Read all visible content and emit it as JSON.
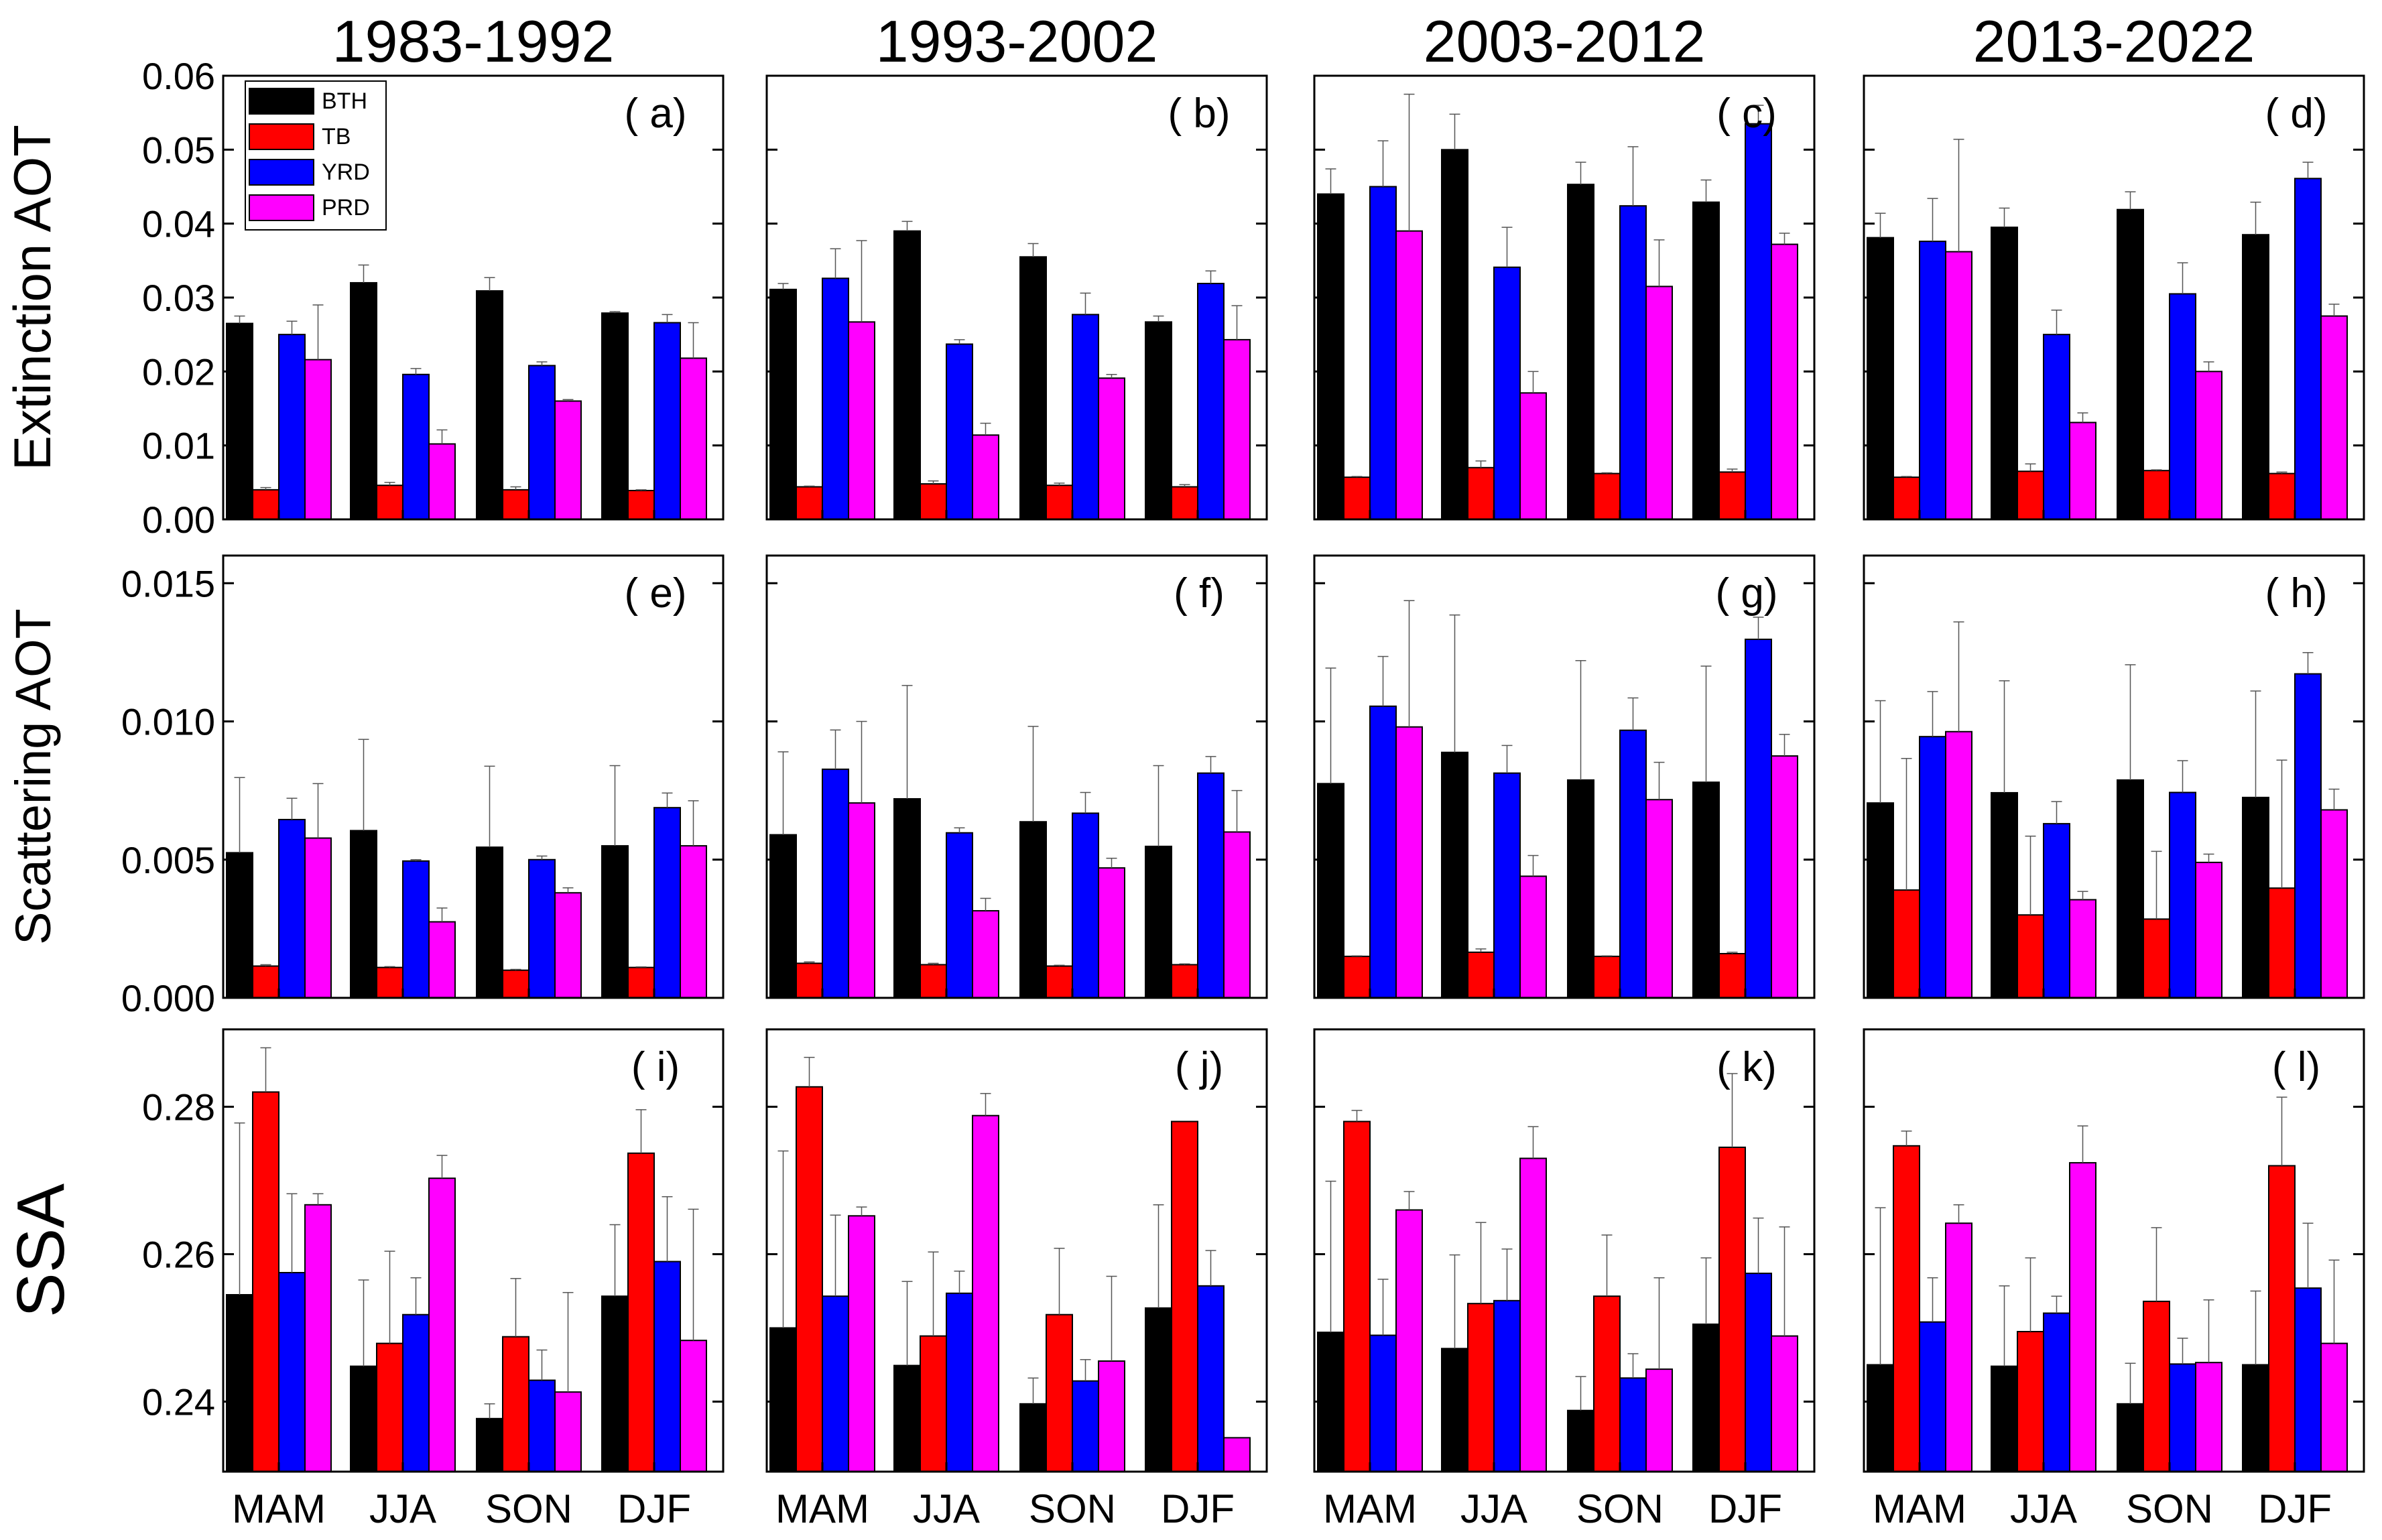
{
  "colors": {
    "BTH": "#000000",
    "TB": "#ff0000",
    "YRD": "#0000ff",
    "PRD": "#ff00ff"
  },
  "chart_data": {
    "type": "bar",
    "period_titles": [
      "1983-1992",
      "1993-2002",
      "2003-2012",
      "2013-2022"
    ],
    "categories": [
      "MAM",
      "JJA",
      "SON",
      "DJF"
    ],
    "series_names": [
      "BTH",
      "TB",
      "YRD",
      "PRD"
    ],
    "legend_position": "top-left of panel (a)",
    "rows": [
      {
        "ylabel": "Extinction AOT",
        "ylim": [
          0,
          0.06
        ],
        "yticks": [
          0.0,
          0.01,
          0.02,
          0.03,
          0.04,
          0.05,
          0.06
        ],
        "ytick_labels": [
          "0.00",
          "0.01",
          "0.02",
          "0.03",
          "0.04",
          "0.05",
          "0.06"
        ],
        "panels": [
          {
            "label": "( a)",
            "values": [
              [
                0.0265,
                0.004,
                0.025,
                0.0216
              ],
              [
                0.032,
                0.0046,
                0.0196,
                0.0102
              ],
              [
                0.0309,
                0.004,
                0.0208,
                0.016
              ],
              [
                0.0279,
                0.0039,
                0.0266,
                0.0218
              ]
            ],
            "errors": [
              [
                0.001,
                0.0003,
                0.0018,
                0.0074
              ],
              [
                0.0024,
                0.0004,
                0.0008,
                0.0019
              ],
              [
                0.0018,
                0.0004,
                0.0005,
                0.0002
              ],
              [
                0.0002,
                0.0001,
                0.0011,
                0.0048
              ]
            ]
          },
          {
            "label": "( b)",
            "values": [
              [
                0.0311,
                0.0044,
                0.0326,
                0.0267
              ],
              [
                0.039,
                0.0048,
                0.0237,
                0.0114
              ],
              [
                0.0355,
                0.0046,
                0.0277,
                0.0191
              ],
              [
                0.0267,
                0.0044,
                0.0319,
                0.0243
              ]
            ],
            "errors": [
              [
                0.0008,
                0.0001,
                0.004,
                0.011
              ],
              [
                0.0013,
                0.0004,
                0.0006,
                0.0016
              ],
              [
                0.0018,
                0.0003,
                0.0029,
                0.0005
              ],
              [
                0.0008,
                0.0003,
                0.0017,
                0.0046
              ]
            ]
          },
          {
            "label": "( c)",
            "values": [
              [
                0.044,
                0.0057,
                0.045,
                0.039
              ],
              [
                0.05,
                0.007,
                0.0341,
                0.0171
              ],
              [
                0.0453,
                0.0062,
                0.0424,
                0.0315
              ],
              [
                0.0429,
                0.0064,
                0.0535,
                0.0372
              ]
            ],
            "errors": [
              [
                0.0034,
                0.0001,
                0.0062,
                0.0185
              ],
              [
                0.0048,
                0.0009,
                0.0054,
                0.0029
              ],
              [
                0.003,
                0.0001,
                0.008,
                0.0063
              ],
              [
                0.003,
                0.0004,
                0.0025,
                0.0015
              ]
            ]
          },
          {
            "label": "( d)",
            "values": [
              [
                0.0381,
                0.0057,
                0.0376,
                0.0362
              ],
              [
                0.0395,
                0.0065,
                0.025,
                0.0131
              ],
              [
                0.0419,
                0.0066,
                0.0305,
                0.02
              ],
              [
                0.0385,
                0.0062,
                0.0461,
                0.0275
              ]
            ],
            "errors": [
              [
                0.0033,
                0.0001,
                0.0058,
                0.0152
              ],
              [
                0.0026,
                0.001,
                0.0033,
                0.0013
              ],
              [
                0.0024,
                0.0001,
                0.0042,
                0.0013
              ],
              [
                0.0044,
                0.0002,
                0.0022,
                0.0016
              ]
            ]
          }
        ]
      },
      {
        "ylabel": "Scattering AOT",
        "ylim": [
          0,
          0.016
        ],
        "yticks": [
          0.0,
          0.005,
          0.01,
          0.015
        ],
        "ytick_labels": [
          "0.000",
          "0.005",
          "0.010",
          "0.015"
        ],
        "panels": [
          {
            "label": "( e)",
            "values": [
              [
                0.00525,
                0.00115,
                0.00645,
                0.00578
              ],
              [
                0.00605,
                0.0011,
                0.00495,
                0.00275
              ],
              [
                0.00545,
                0.001,
                0.005,
                0.0038
              ],
              [
                0.0055,
                0.0011,
                0.00688,
                0.0055
              ]
            ],
            "errors": [
              [
                0.00272,
                5e-05,
                0.00077,
                0.00197
              ],
              [
                0.0033,
                3e-05,
                5e-05,
                0.0005
              ],
              [
                0.00293,
                3e-05,
                0.00013,
                0.00018
              ],
              [
                0.0029,
                2e-05,
                0.00053,
                0.00163
              ]
            ]
          },
          {
            "label": "( f)",
            "values": [
              [
                0.0059,
                0.00125,
                0.00827,
                0.00705
              ],
              [
                0.0072,
                0.0012,
                0.00597,
                0.00315
              ],
              [
                0.00637,
                0.00115,
                0.00668,
                0.0047
              ],
              [
                0.00548,
                0.0012,
                0.00813,
                0.006
              ]
            ],
            "errors": [
              [
                0.003,
                5e-05,
                0.00142,
                0.00295
              ],
              [
                0.0041,
                5e-05,
                0.00018,
                0.00045
              ],
              [
                0.00345,
                3e-05,
                0.00075,
                0.00035
              ],
              [
                0.00292,
                3e-05,
                0.0006,
                0.0015
              ]
            ]
          },
          {
            "label": "( g)",
            "values": [
              [
                0.00775,
                0.0015,
                0.01055,
                0.0098
              ],
              [
                0.00888,
                0.00165,
                0.00813,
                0.0044
              ],
              [
                0.00788,
                0.0015,
                0.00968,
                0.00717
              ],
              [
                0.0078,
                0.0016,
                0.01297,
                0.00875
              ]
            ],
            "errors": [
              [
                0.00418,
                2e-05,
                0.0018,
                0.00457
              ],
              [
                0.00497,
                0.00012,
                0.001,
                0.00075
              ],
              [
                0.00432,
                2e-05,
                0.00117,
                0.00135
              ],
              [
                0.0042,
                5e-05,
                0.0008,
                0.00078
              ]
            ]
          },
          {
            "label": "( h)",
            "values": [
              [
                0.00705,
                0.0039,
                0.00945,
                0.00963
              ],
              [
                0.00742,
                0.003,
                0.0063,
                0.00355
              ],
              [
                0.00788,
                0.00285,
                0.00743,
                0.0049
              ],
              [
                0.00725,
                0.00397,
                0.01172,
                0.0068
              ]
            ],
            "errors": [
              [
                0.0037,
                0.00476,
                0.00163,
                0.00397
              ],
              [
                0.00405,
                0.00285,
                0.0008,
                0.0003
              ],
              [
                0.00417,
                0.00245,
                0.00115,
                0.0003
              ],
              [
                0.00385,
                0.00463,
                0.00077,
                0.00075
              ]
            ]
          }
        ]
      },
      {
        "ylabel": "SSA",
        "ylim": [
          0.2305,
          0.2905
        ],
        "yticks": [
          0.24,
          0.26,
          0.28
        ],
        "ytick_labels": [
          "0.24",
          "0.26",
          "0.28"
        ],
        "panels": [
          {
            "label": "( i)",
            "values": [
              [
                0.2545,
                0.282,
                0.2575,
                0.2667
              ],
              [
                0.2448,
                0.2479,
                0.2518,
                0.2703
              ],
              [
                0.2377,
                0.2488,
                0.2429,
                0.2413
              ],
              [
                0.2543,
                0.2737,
                0.259,
                0.2483
              ]
            ],
            "errors": [
              [
                0.0233,
                0.006,
                0.0107,
                0.0015
              ],
              [
                0.0117,
                0.0125,
                0.005,
                0.0031
              ],
              [
                0.002,
                0.0079,
                0.0041,
                0.0135
              ],
              [
                0.0097,
                0.0059,
                0.0088,
                0.0178
              ]
            ]
          },
          {
            "label": "( j)",
            "values": [
              [
                0.25,
                0.2827,
                0.2543,
                0.2652
              ],
              [
                0.2449,
                0.2489,
                0.2547,
                0.2788
              ],
              [
                0.2397,
                0.2518,
                0.2428,
                0.2455
              ],
              [
                0.2527,
                0.278,
                0.2557,
                0.2351
              ]
            ],
            "errors": [
              [
                0.024,
                0.004,
                0.011,
                0.0012
              ],
              [
                0.0114,
                0.0114,
                0.003,
                0.003
              ],
              [
                0.0035,
                0.009,
                0.0029,
                0.0115
              ],
              [
                0.014,
                0.0,
                0.0048,
                0.0
              ]
            ]
          },
          {
            "label": "( k)",
            "values": [
              [
                0.2494,
                0.278,
                0.249,
                0.266
              ],
              [
                0.2472,
                0.2533,
                0.2537,
                0.273
              ],
              [
                0.2388,
                0.2543,
                0.2432,
                0.2444
              ],
              [
                0.2505,
                0.2745,
                0.2574,
                0.2489
              ]
            ],
            "errors": [
              [
                0.0205,
                0.0015,
                0.0076,
                0.0025
              ],
              [
                0.0127,
                0.011,
                0.007,
                0.0043
              ],
              [
                0.0046,
                0.0083,
                0.0033,
                0.0124
              ],
              [
                0.009,
                0.01,
                0.0075,
                0.0148
              ]
            ]
          },
          {
            "label": "( l)",
            "values": [
              [
                0.245,
                0.2747,
                0.2508,
                0.2642
              ],
              [
                0.2448,
                0.2495,
                0.252,
                0.2724
              ],
              [
                0.2397,
                0.2536,
                0.2451,
                0.2453
              ],
              [
                0.245,
                0.272,
                0.2554,
                0.2479
              ]
            ],
            "errors": [
              [
                0.0213,
                0.002,
                0.006,
                0.0025
              ],
              [
                0.0109,
                0.01,
                0.0023,
                0.005
              ],
              [
                0.0055,
                0.01,
                0.0035,
                0.0085
              ],
              [
                0.01,
                0.0093,
                0.0088,
                0.0113
              ]
            ]
          }
        ]
      }
    ]
  }
}
